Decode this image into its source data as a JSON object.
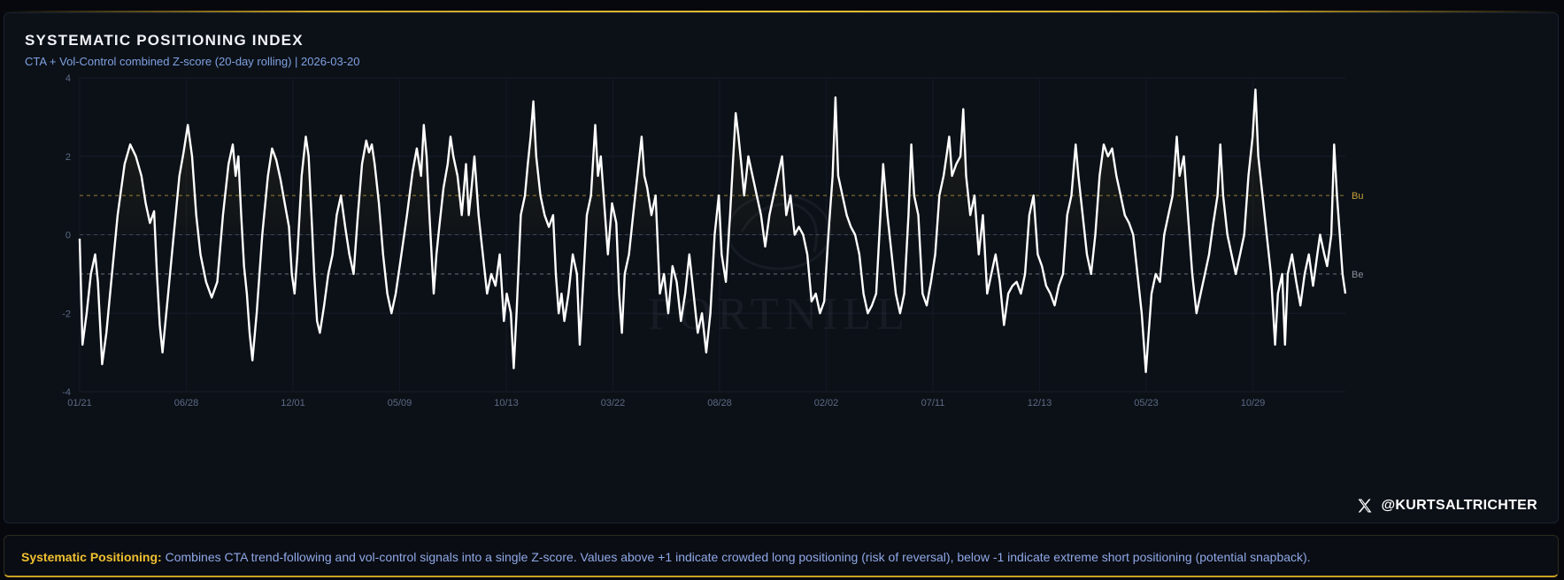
{
  "chart_data": {
    "type": "line",
    "title": "SYSTEMATIC POSITIONING INDEX",
    "subtitle": "CTA + Vol-Control combined Z-score (20-day rolling) | 2026-03-20",
    "ylim": [
      -4,
      4
    ],
    "y_ticks": [
      "4",
      "2",
      "0",
      "-2",
      "-4"
    ],
    "x_tick_labels": [
      "01/21",
      "06/28",
      "12/01",
      "05/09",
      "10/13",
      "03/22",
      "08/28",
      "02/02",
      "07/11",
      "12/13",
      "05/23",
      "10/29"
    ],
    "reference_lines": [
      {
        "label": "Bu",
        "value": 1,
        "color": "#c9a03a"
      },
      {
        "label": "",
        "value": 0,
        "color": "#4a5468"
      },
      {
        "label": "Be",
        "value": -1,
        "color": "#8a8f9a"
      }
    ],
    "grid": true,
    "line_color": "#ffffff",
    "keypoints": [
      [
        0,
        -0.1
      ],
      [
        2,
        -2.8
      ],
      [
        5,
        -2.0
      ],
      [
        8,
        -1.0
      ],
      [
        11,
        -0.5
      ],
      [
        13,
        -1.2
      ],
      [
        16,
        -3.3
      ],
      [
        19,
        -2.5
      ],
      [
        23,
        -1.0
      ],
      [
        27,
        0.5
      ],
      [
        32,
        1.8
      ],
      [
        36,
        2.3
      ],
      [
        40,
        2.0
      ],
      [
        44,
        1.5
      ],
      [
        47,
        0.8
      ],
      [
        50,
        0.3
      ],
      [
        53,
        0.6
      ],
      [
        55,
        -1.0
      ],
      [
        57,
        -2.3
      ],
      [
        59,
        -3.0
      ],
      [
        63,
        -1.5
      ],
      [
        67,
        0.0
      ],
      [
        71,
        1.5
      ],
      [
        74,
        2.1
      ],
      [
        77,
        2.8
      ],
      [
        80,
        2.0
      ],
      [
        83,
        0.5
      ],
      [
        86,
        -0.5
      ],
      [
        90,
        -1.2
      ],
      [
        94,
        -1.6
      ],
      [
        98,
        -1.2
      ],
      [
        102,
        0.5
      ],
      [
        106,
        1.8
      ],
      [
        109,
        2.3
      ],
      [
        111,
        1.5
      ],
      [
        113,
        2.0
      ],
      [
        115,
        0.5
      ],
      [
        117,
        -0.8
      ],
      [
        119,
        -1.5
      ],
      [
        121,
        -2.5
      ],
      [
        123,
        -3.2
      ],
      [
        126,
        -2.0
      ],
      [
        130,
        0.0
      ],
      [
        134,
        1.5
      ],
      [
        137,
        2.2
      ],
      [
        140,
        1.9
      ],
      [
        143,
        1.4
      ],
      [
        146,
        0.8
      ],
      [
        149,
        0.2
      ],
      [
        151,
        -1.0
      ],
      [
        153,
        -1.5
      ],
      [
        155,
        -0.5
      ],
      [
        158,
        1.5
      ],
      [
        161,
        2.5
      ],
      [
        163,
        2.0
      ],
      [
        165,
        0.5
      ],
      [
        167,
        -1.0
      ],
      [
        169,
        -2.2
      ],
      [
        171,
        -2.5
      ],
      [
        174,
        -1.8
      ],
      [
        177,
        -1.0
      ],
      [
        180,
        -0.5
      ],
      [
        183,
        0.5
      ],
      [
        186,
        1.0
      ],
      [
        189,
        0.2
      ],
      [
        192,
        -0.5
      ],
      [
        195,
        -1.0
      ],
      [
        198,
        0.5
      ],
      [
        201,
        1.8
      ],
      [
        204,
        2.4
      ],
      [
        206,
        2.1
      ],
      [
        208,
        2.3
      ],
      [
        210,
        1.8
      ],
      [
        213,
        0.8
      ],
      [
        216,
        -0.5
      ],
      [
        219,
        -1.5
      ],
      [
        222,
        -2.0
      ],
      [
        225,
        -1.5
      ],
      [
        229,
        -0.5
      ],
      [
        233,
        0.5
      ],
      [
        237,
        1.6
      ],
      [
        240,
        2.2
      ],
      [
        243,
        1.5
      ],
      [
        245,
        2.8
      ],
      [
        247,
        2.0
      ],
      [
        249,
        0.5
      ],
      [
        252,
        -1.5
      ],
      [
        254,
        -0.5
      ],
      [
        256,
        0.2
      ],
      [
        259,
        1.2
      ],
      [
        262,
        1.8
      ],
      [
        264,
        2.5
      ],
      [
        266,
        2.0
      ],
      [
        269,
        1.5
      ],
      [
        272,
        0.5
      ],
      [
        275,
        1.8
      ],
      [
        277,
        0.5
      ],
      [
        279,
        1.2
      ],
      [
        281,
        2.0
      ],
      [
        284,
        0.5
      ],
      [
        287,
        -0.5
      ],
      [
        290,
        -1.5
      ],
      [
        293,
        -1.0
      ],
      [
        296,
        -1.3
      ],
      [
        299,
        -0.5
      ],
      [
        302,
        -2.2
      ],
      [
        304,
        -1.5
      ],
      [
        307,
        -2.0
      ],
      [
        309,
        -3.4
      ],
      [
        311,
        -2.0
      ],
      [
        314,
        0.5
      ],
      [
        317,
        1.0
      ],
      [
        319,
        1.8
      ],
      [
        321,
        2.5
      ],
      [
        323,
        3.4
      ],
      [
        325,
        2.0
      ],
      [
        328,
        1.0
      ],
      [
        331,
        0.5
      ],
      [
        334,
        0.2
      ],
      [
        337,
        0.5
      ],
      [
        339,
        -1.0
      ],
      [
        341,
        -2.0
      ],
      [
        343,
        -1.5
      ],
      [
        345,
        -2.2
      ],
      [
        348,
        -1.5
      ],
      [
        351,
        -0.5
      ],
      [
        354,
        -1.0
      ],
      [
        356,
        -2.8
      ],
      [
        358,
        -1.5
      ],
      [
        361,
        0.5
      ],
      [
        364,
        1.0
      ],
      [
        367,
        2.8
      ],
      [
        369,
        1.5
      ],
      [
        371,
        2.0
      ],
      [
        373,
        1.0
      ],
      [
        376,
        -0.5
      ],
      [
        379,
        0.8
      ],
      [
        382,
        0.3
      ],
      [
        384,
        -1.5
      ],
      [
        386,
        -2.5
      ],
      [
        388,
        -1.0
      ],
      [
        391,
        -0.5
      ],
      [
        394,
        0.5
      ],
      [
        397,
        1.5
      ],
      [
        400,
        2.5
      ],
      [
        402,
        1.5
      ],
      [
        404,
        1.2
      ],
      [
        407,
        0.5
      ],
      [
        410,
        1.0
      ],
      [
        413,
        -1.5
      ],
      [
        416,
        -1.0
      ],
      [
        419,
        -2.0
      ],
      [
        422,
        -0.8
      ],
      [
        425,
        -1.2
      ],
      [
        428,
        -2.2
      ],
      [
        431,
        -1.5
      ],
      [
        434,
        -0.5
      ],
      [
        437,
        -1.5
      ],
      [
        440,
        -2.5
      ],
      [
        443,
        -2.0
      ],
      [
        446,
        -3.0
      ],
      [
        449,
        -2.0
      ],
      [
        452,
        0.0
      ],
      [
        455,
        1.0
      ],
      [
        457,
        -0.5
      ],
      [
        460,
        -1.2
      ],
      [
        463,
        0.5
      ],
      [
        465,
        1.8
      ],
      [
        467,
        3.1
      ],
      [
        469,
        2.5
      ],
      [
        471,
        1.8
      ],
      [
        473,
        1.0
      ],
      [
        476,
        2.0
      ],
      [
        479,
        1.5
      ],
      [
        482,
        1.0
      ],
      [
        485,
        0.5
      ],
      [
        488,
        -0.3
      ],
      [
        491,
        0.5
      ],
      [
        494,
        1.0
      ],
      [
        497,
        1.5
      ],
      [
        500,
        2.0
      ],
      [
        503,
        0.5
      ],
      [
        506,
        1.0
      ],
      [
        509,
        0.0
      ],
      [
        512,
        0.2
      ],
      [
        515,
        0.0
      ],
      [
        518,
        -0.5
      ],
      [
        521,
        -1.7
      ],
      [
        524,
        -1.5
      ],
      [
        527,
        -2.0
      ],
      [
        530,
        -1.7
      ],
      [
        533,
        0.0
      ],
      [
        536,
        1.5
      ],
      [
        538,
        3.5
      ],
      [
        540,
        1.5
      ],
      [
        543,
        1.0
      ],
      [
        546,
        0.5
      ],
      [
        549,
        0.2
      ],
      [
        552,
        0.0
      ],
      [
        555,
        -0.5
      ],
      [
        558,
        -1.5
      ],
      [
        561,
        -2.0
      ],
      [
        564,
        -1.8
      ],
      [
        567,
        -1.5
      ],
      [
        570,
        0.5
      ],
      [
        572,
        1.8
      ],
      [
        575,
        0.5
      ],
      [
        578,
        -0.5
      ],
      [
        581,
        -1.5
      ],
      [
        584,
        -2.0
      ],
      [
        587,
        -1.5
      ],
      [
        590,
        0.5
      ],
      [
        592,
        2.3
      ],
      [
        594,
        1.0
      ],
      [
        597,
        0.5
      ],
      [
        600,
        -1.5
      ],
      [
        603,
        -1.8
      ],
      [
        606,
        -1.2
      ],
      [
        609,
        -0.5
      ],
      [
        612,
        1.0
      ],
      [
        615,
        1.5
      ],
      [
        617,
        2.0
      ],
      [
        619,
        2.5
      ],
      [
        621,
        1.5
      ],
      [
        624,
        1.8
      ],
      [
        627,
        2.0
      ],
      [
        629,
        3.2
      ],
      [
        631,
        1.5
      ],
      [
        634,
        0.5
      ],
      [
        637,
        1.0
      ],
      [
        640,
        -0.5
      ],
      [
        643,
        0.5
      ],
      [
        646,
        -1.5
      ],
      [
        649,
        -1.0
      ],
      [
        652,
        -0.5
      ],
      [
        655,
        -1.2
      ],
      [
        658,
        -2.3
      ],
      [
        661,
        -1.5
      ],
      [
        664,
        -1.3
      ],
      [
        667,
        -1.2
      ],
      [
        670,
        -1.5
      ],
      [
        673,
        -1.0
      ],
      [
        676,
        0.5
      ],
      [
        679,
        1.0
      ],
      [
        682,
        -0.5
      ],
      [
        685,
        -0.8
      ],
      [
        688,
        -1.3
      ],
      [
        691,
        -1.5
      ],
      [
        694,
        -1.8
      ],
      [
        697,
        -1.3
      ],
      [
        700,
        -1.0
      ],
      [
        703,
        0.5
      ],
      [
        706,
        1.0
      ],
      [
        709,
        2.3
      ],
      [
        711,
        1.5
      ],
      [
        714,
        0.5
      ],
      [
        717,
        -0.5
      ],
      [
        720,
        -1.0
      ],
      [
        723,
        0.0
      ],
      [
        726,
        1.5
      ],
      [
        729,
        2.3
      ],
      [
        732,
        2.0
      ],
      [
        735,
        2.2
      ],
      [
        738,
        1.5
      ],
      [
        741,
        1.0
      ],
      [
        744,
        0.5
      ],
      [
        747,
        0.3
      ],
      [
        750,
        0.0
      ],
      [
        753,
        -1.0
      ],
      [
        756,
        -2.0
      ],
      [
        759,
        -3.5
      ],
      [
        761,
        -2.5
      ],
      [
        763,
        -1.5
      ],
      [
        766,
        -1.0
      ],
      [
        769,
        -1.2
      ],
      [
        772,
        0.0
      ],
      [
        775,
        0.5
      ],
      [
        778,
        1.0
      ],
      [
        781,
        2.5
      ],
      [
        783,
        1.5
      ],
      [
        786,
        2.0
      ],
      [
        789,
        0.5
      ],
      [
        792,
        -1.0
      ],
      [
        795,
        -2.0
      ],
      [
        798,
        -1.5
      ],
      [
        801,
        -1.0
      ],
      [
        804,
        -0.5
      ],
      [
        807,
        0.3
      ],
      [
        810,
        1.0
      ],
      [
        812,
        2.3
      ],
      [
        814,
        1.0
      ],
      [
        817,
        0.0
      ],
      [
        820,
        -0.5
      ],
      [
        823,
        -1.0
      ],
      [
        826,
        -0.5
      ],
      [
        829,
        0.0
      ],
      [
        832,
        1.5
      ],
      [
        835,
        2.5
      ],
      [
        837,
        3.7
      ],
      [
        839,
        2.0
      ],
      [
        842,
        1.0
      ],
      [
        845,
        0.0
      ],
      [
        848,
        -1.0
      ],
      [
        851,
        -2.8
      ],
      [
        853,
        -1.5
      ],
      [
        856,
        -1.0
      ],
      [
        858,
        -2.8
      ],
      [
        860,
        -1.0
      ],
      [
        863,
        -0.5
      ],
      [
        866,
        -1.2
      ],
      [
        869,
        -1.8
      ],
      [
        872,
        -1.0
      ],
      [
        875,
        -0.5
      ],
      [
        878,
        -1.3
      ],
      [
        881,
        -0.5
      ],
      [
        883,
        0.0
      ],
      [
        886,
        -0.5
      ],
      [
        888,
        -0.8
      ],
      [
        891,
        0.0
      ],
      [
        893,
        2.3
      ],
      [
        895,
        1.0
      ],
      [
        897,
        0.0
      ],
      [
        899,
        -1.0
      ],
      [
        901,
        -1.5
      ]
    ]
  },
  "watermark": "FORTNILL",
  "handle": {
    "icon": "x-logo-icon",
    "text": "@KURTSALTRICHTER"
  },
  "footer": {
    "label": "Systematic Positioning:",
    "text": "Combines CTA trend-following and vol-control signals into a single Z-score. Values above +1 indicate crowded long positioning (risk of reversal), below -1 indicate extreme short positioning (potential snapback)."
  }
}
